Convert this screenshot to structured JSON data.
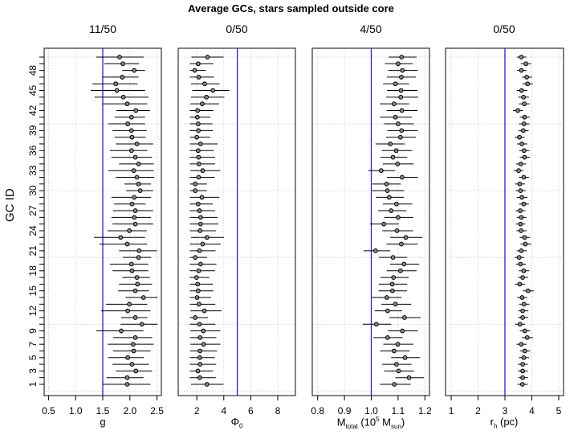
{
  "figure": {
    "title": "Average GCs, stars sampled outside core",
    "ylabel": "GC ID"
  },
  "chart_data": [
    {
      "type": "scatter",
      "subtype": "errorbar-dotplot",
      "panel_title": "11/50",
      "xlabel": "g",
      "ylabel": "GC ID",
      "xlim": [
        0.42,
        2.58
      ],
      "xticks": [
        0.5,
        1.0,
        1.5,
        2.0,
        2.5
      ],
      "xtick_labels": [
        "0.5",
        "1.0",
        "1.5",
        "2.0",
        "2.5"
      ],
      "reference_line": 1.5,
      "reference_color": "#2222cc",
      "grid": true,
      "ids": [
        50,
        49,
        48,
        47,
        46,
        45,
        44,
        43,
        42,
        41,
        40,
        39,
        38,
        37,
        36,
        35,
        34,
        33,
        32,
        31,
        30,
        29,
        28,
        27,
        26,
        25,
        24,
        23,
        22,
        21,
        20,
        19,
        18,
        17,
        16,
        15,
        14,
        13,
        12,
        11,
        10,
        9,
        8,
        7,
        6,
        5,
        4,
        3,
        2,
        1
      ],
      "values": [
        1.81,
        1.87,
        2.08,
        1.86,
        1.74,
        1.76,
        1.88,
        1.95,
        2.11,
        2.03,
        1.96,
        2.03,
        2.04,
        2.13,
        2.03,
        2.1,
        2.16,
        2.07,
        2.13,
        2.16,
        2.19,
        2.08,
        2.04,
        2.1,
        2.08,
        2.1,
        1.99,
        1.83,
        1.95,
        2.17,
        2.16,
        2.03,
        2.04,
        2.13,
        2.14,
        2.1,
        2.25,
        1.99,
        1.96,
        2.1,
        2.22,
        1.84,
        2.1,
        2.06,
        2.07,
        1.96,
        2.04,
        2.11,
        1.95,
        1.95
      ],
      "lower": [
        1.38,
        1.53,
        1.86,
        1.49,
        1.31,
        1.28,
        1.35,
        1.5,
        1.75,
        1.72,
        1.6,
        1.68,
        1.72,
        1.74,
        1.63,
        1.66,
        1.8,
        1.6,
        1.74,
        1.9,
        1.93,
        1.66,
        1.71,
        1.69,
        1.66,
        1.68,
        1.59,
        1.34,
        1.44,
        1.8,
        1.87,
        1.63,
        1.68,
        1.86,
        1.8,
        1.78,
        1.92,
        1.56,
        1.47,
        1.84,
        1.83,
        1.38,
        1.69,
        1.59,
        1.69,
        1.6,
        1.68,
        1.74,
        1.57,
        1.5
      ],
      "upper": [
        2.26,
        2.17,
        2.28,
        2.16,
        2.14,
        2.28,
        2.34,
        2.32,
        2.37,
        2.28,
        2.28,
        2.31,
        2.29,
        2.43,
        2.32,
        2.41,
        2.44,
        2.44,
        2.45,
        2.39,
        2.43,
        2.39,
        2.29,
        2.43,
        2.39,
        2.43,
        2.31,
        2.28,
        2.32,
        2.5,
        2.39,
        2.34,
        2.34,
        2.37,
        2.41,
        2.35,
        2.51,
        2.32,
        2.38,
        2.32,
        2.51,
        2.25,
        2.41,
        2.44,
        2.38,
        2.26,
        2.35,
        2.41,
        2.25,
        2.38
      ]
    },
    {
      "type": "scatter",
      "subtype": "errorbar-dotplot",
      "panel_title": "0/50",
      "xlabel": "Φ0",
      "xlabel_main": "Φ",
      "xlabel_sub": "0",
      "ylabel": "GC ID",
      "xlim": [
        0.62,
        9.31
      ],
      "xticks": [
        2,
        4,
        6,
        8
      ],
      "xtick_labels": [
        "2",
        "4",
        "6",
        "8"
      ],
      "reference_line": 5,
      "reference_color": "#2222cc",
      "grid": true,
      "ids": [
        50,
        49,
        48,
        47,
        46,
        45,
        44,
        43,
        42,
        41,
        40,
        39,
        38,
        37,
        36,
        35,
        34,
        33,
        32,
        31,
        30,
        29,
        28,
        27,
        26,
        25,
        24,
        23,
        22,
        21,
        20,
        19,
        18,
        17,
        16,
        15,
        14,
        13,
        12,
        11,
        10,
        9,
        8,
        7,
        6,
        5,
        4,
        3,
        2,
        1
      ],
      "values": [
        2.79,
        2.1,
        1.84,
        2.14,
        2.58,
        3.19,
        2.71,
        2.4,
        2.06,
        2.04,
        2.1,
        2.12,
        2.0,
        2.28,
        2.1,
        2.14,
        2.16,
        2.43,
        2.14,
        1.88,
        1.88,
        2.38,
        2.1,
        2.2,
        2.28,
        2.28,
        2.24,
        2.75,
        2.43,
        2.2,
        1.88,
        2.28,
        2.14,
        1.98,
        2.06,
        2.1,
        2.02,
        2.16,
        2.56,
        1.88,
        2.2,
        2.48,
        2.24,
        2.5,
        2.24,
        2.22,
        2.24,
        2.08,
        2.22,
        2.75
      ],
      "lower": [
        1.6,
        1.48,
        1.48,
        1.48,
        1.57,
        1.66,
        1.57,
        1.52,
        1.48,
        1.48,
        1.48,
        1.48,
        1.48,
        1.48,
        1.48,
        1.48,
        1.48,
        1.52,
        1.48,
        1.48,
        1.48,
        1.48,
        1.48,
        1.48,
        1.48,
        1.48,
        1.48,
        1.57,
        1.48,
        1.48,
        1.48,
        1.48,
        1.48,
        1.48,
        1.48,
        1.48,
        1.48,
        1.48,
        1.52,
        1.48,
        1.48,
        1.52,
        1.48,
        1.52,
        1.48,
        1.48,
        1.48,
        1.48,
        1.48,
        1.57
      ],
      "upper": [
        3.98,
        3.23,
        2.67,
        3.27,
        3.68,
        4.42,
        4.04,
        3.65,
        3.23,
        3.01,
        3.15,
        3.19,
        2.99,
        3.55,
        3.25,
        3.35,
        3.35,
        3.74,
        3.33,
        2.75,
        2.75,
        3.67,
        3.19,
        3.35,
        3.53,
        3.59,
        3.41,
        4.02,
        3.77,
        3.39,
        2.75,
        3.45,
        3.35,
        2.93,
        3.19,
        3.23,
        3.05,
        3.37,
        3.83,
        2.83,
        3.37,
        3.74,
        3.45,
        3.74,
        3.49,
        3.33,
        3.43,
        3.21,
        3.41,
        3.98
      ]
    },
    {
      "type": "scatter",
      "subtype": "errorbar-dotplot",
      "panel_title": "4/50",
      "xlabel": "Mtotal (10^5 Msun)",
      "xlabel_main": "M",
      "xlabel_sub": "total",
      "xlabel_rest_a": " (10",
      "xlabel_sup": "5",
      "xlabel_rest_b": " M",
      "xlabel_sub2": "sun",
      "xlabel_rest_c": ")",
      "ylabel": "GC ID",
      "xlim": [
        0.7799,
        1.2171
      ],
      "xticks": [
        0.8,
        0.9,
        1.0,
        1.1,
        1.2
      ],
      "xtick_labels": [
        "0.8",
        "0.9",
        "1.0",
        "1.1",
        "1.2"
      ],
      "reference_line": 1.0,
      "reference_color": "#2222cc",
      "grid": true,
      "ids": [
        50,
        49,
        48,
        47,
        46,
        45,
        44,
        43,
        42,
        41,
        40,
        39,
        38,
        37,
        36,
        35,
        34,
        33,
        32,
        31,
        30,
        29,
        28,
        27,
        26,
        25,
        24,
        23,
        22,
        21,
        20,
        19,
        18,
        17,
        16,
        15,
        14,
        13,
        12,
        11,
        10,
        9,
        8,
        7,
        6,
        5,
        4,
        3,
        2,
        1
      ],
      "values": [
        1.113,
        1.1,
        1.116,
        1.112,
        1.09,
        1.111,
        1.11,
        1.085,
        1.114,
        1.09,
        1.1,
        1.113,
        1.109,
        1.071,
        1.093,
        1.081,
        1.098,
        1.037,
        1.115,
        1.057,
        1.06,
        1.067,
        1.094,
        1.074,
        1.1,
        1.047,
        1.096,
        1.129,
        1.112,
        1.016,
        1.081,
        1.122,
        1.109,
        1.083,
        1.078,
        1.079,
        1.058,
        1.09,
        1.061,
        1.124,
        1.019,
        1.116,
        1.061,
        1.099,
        1.085,
        1.126,
        1.094,
        1.102,
        1.141,
        1.086
      ],
      "lower": [
        1.065,
        1.051,
        1.063,
        1.058,
        1.044,
        1.059,
        1.056,
        1.032,
        1.057,
        1.033,
        1.048,
        1.06,
        1.055,
        1.016,
        1.04,
        1.034,
        1.043,
        0.989,
        1.058,
        1.004,
        1.003,
        1.017,
        1.043,
        1.025,
        1.048,
        0.995,
        1.041,
        1.071,
        1.057,
        0.971,
        1.028,
        1.07,
        1.057,
        1.034,
        1.028,
        1.027,
        1.001,
        1.038,
        1.013,
        1.067,
        0.968,
        1.062,
        1.008,
        1.045,
        1.033,
        1.074,
        1.041,
        1.048,
        1.09,
        1.032
      ],
      "upper": [
        1.169,
        1.155,
        1.173,
        1.167,
        1.141,
        1.172,
        1.175,
        1.141,
        1.173,
        1.152,
        1.158,
        1.173,
        1.166,
        1.125,
        1.151,
        1.134,
        1.158,
        1.089,
        1.174,
        1.11,
        1.122,
        1.122,
        1.153,
        1.131,
        1.157,
        1.103,
        1.156,
        1.191,
        1.173,
        1.071,
        1.134,
        1.179,
        1.169,
        1.139,
        1.134,
        1.133,
        1.113,
        1.149,
        1.115,
        1.184,
        1.074,
        1.173,
        1.117,
        1.157,
        1.143,
        1.182,
        1.15,
        1.159,
        1.197,
        1.147
      ]
    },
    {
      "type": "scatter",
      "subtype": "errorbar-dotplot",
      "panel_title": "0/50",
      "xlabel": "rh (pc)",
      "xlabel_main": "r",
      "xlabel_sub": "h",
      "xlabel_rest_a": " (pc)",
      "ylabel": "GC ID",
      "xlim": [
        0.79,
        5.18
      ],
      "xticks": [
        1,
        2,
        3,
        4,
        5
      ],
      "xtick_labels": [
        "1",
        "2",
        "3",
        "4",
        "5"
      ],
      "reference_line": 3,
      "reference_color": "#2222cc",
      "grid": true,
      "ids": [
        50,
        49,
        48,
        47,
        46,
        45,
        44,
        43,
        42,
        41,
        40,
        39,
        38,
        37,
        36,
        35,
        34,
        33,
        32,
        31,
        30,
        29,
        28,
        27,
        26,
        25,
        24,
        23,
        22,
        21,
        20,
        19,
        18,
        17,
        16,
        15,
        14,
        13,
        12,
        11,
        10,
        9,
        8,
        7,
        6,
        5,
        4,
        3,
        2,
        1
      ],
      "values": [
        3.61,
        3.78,
        3.61,
        3.81,
        3.84,
        3.62,
        3.69,
        3.72,
        3.48,
        3.73,
        3.71,
        3.68,
        3.54,
        3.63,
        3.71,
        3.73,
        3.59,
        3.51,
        3.7,
        3.55,
        3.58,
        3.63,
        3.7,
        3.57,
        3.61,
        3.58,
        3.6,
        3.73,
        3.76,
        3.61,
        3.53,
        3.58,
        3.7,
        3.66,
        3.55,
        3.86,
        3.64,
        3.71,
        3.66,
        3.66,
        3.56,
        3.74,
        3.83,
        3.61,
        3.74,
        3.7,
        3.66,
        3.66,
        3.66,
        3.65
      ],
      "lower": [
        3.45,
        3.59,
        3.45,
        3.64,
        3.65,
        3.44,
        3.5,
        3.52,
        3.3,
        3.55,
        3.52,
        3.5,
        3.37,
        3.45,
        3.53,
        3.55,
        3.41,
        3.33,
        3.52,
        3.38,
        3.4,
        3.44,
        3.52,
        3.4,
        3.44,
        3.4,
        3.43,
        3.55,
        3.58,
        3.44,
        3.36,
        3.41,
        3.52,
        3.49,
        3.38,
        3.67,
        3.46,
        3.53,
        3.49,
        3.49,
        3.38,
        3.55,
        3.63,
        3.43,
        3.56,
        3.52,
        3.48,
        3.48,
        3.5,
        3.47
      ],
      "upper": [
        3.8,
        3.98,
        3.8,
        4.01,
        4.04,
        3.83,
        3.89,
        3.92,
        3.67,
        3.93,
        3.91,
        3.88,
        3.73,
        3.83,
        3.91,
        3.93,
        3.79,
        3.69,
        3.89,
        3.75,
        3.77,
        3.83,
        3.89,
        3.76,
        3.8,
        3.76,
        3.8,
        3.93,
        3.98,
        3.81,
        3.72,
        3.78,
        3.9,
        3.86,
        3.74,
        4.07,
        3.83,
        3.91,
        3.87,
        3.87,
        3.75,
        3.94,
        4.04,
        3.81,
        3.94,
        3.9,
        3.85,
        3.85,
        3.86,
        3.85
      ]
    }
  ],
  "yaxis": {
    "tick_ids": [
      1,
      2,
      3,
      4,
      5,
      6,
      7,
      8,
      9,
      10,
      11,
      12,
      13,
      14,
      15,
      16,
      17,
      18,
      19,
      20,
      21,
      22,
      23,
      24,
      25,
      26,
      27,
      28,
      29,
      30,
      31,
      32,
      33,
      34,
      35,
      36,
      37,
      38,
      39,
      40,
      41,
      42,
      43,
      44,
      45,
      46,
      47,
      48,
      49,
      50
    ],
    "labeled_ids": [
      1,
      3,
      5,
      7,
      9,
      12,
      15,
      18,
      21,
      24,
      27,
      30,
      33,
      36,
      39,
      42,
      45,
      48
    ],
    "grid_ids": [
      0,
      10,
      20,
      30,
      40,
      50
    ]
  },
  "colors": {
    "reference_line": "#2222cc",
    "grid": "#c8c8c8",
    "axis": "#000000",
    "point_fill": "#888888"
  }
}
